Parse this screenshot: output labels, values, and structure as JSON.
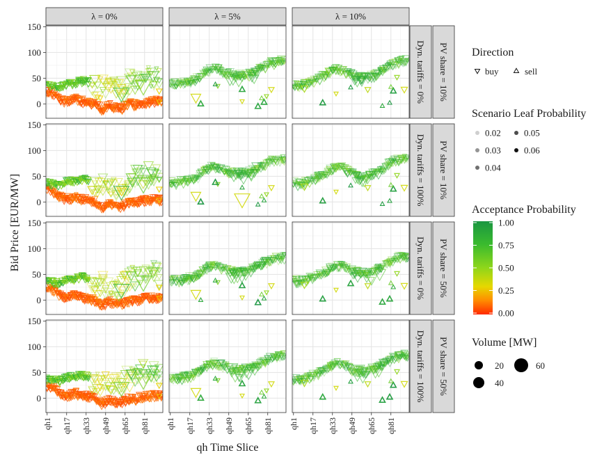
{
  "chart_data": {
    "type": "scatter",
    "xlabel": "qh Time Slice",
    "ylabel": "Bid Price [EUR/MW]",
    "x_tick_labels": [
      "qh1",
      "qh17",
      "qh33",
      "qh49",
      "qh65",
      "qh81"
    ],
    "x_tick_positions": [
      1,
      17,
      33,
      49,
      65,
      81
    ],
    "xlim": [
      0,
      96
    ],
    "ylim": [
      -28,
      152
    ],
    "y_ticks": [
      "0",
      "50",
      "100",
      "150"
    ],
    "column_strips": [
      "λ = 0%",
      "λ = 5%",
      "λ = 10%"
    ],
    "row_strips": [
      {
        "tariffs": "Dyn. tariffs = 0%",
        "pv": "PV share = 10%"
      },
      {
        "tariffs": "Dyn. tariffs = 100%",
        "pv": "PV share = 10%"
      },
      {
        "tariffs": "Dyn. tariffs = 0%",
        "pv": "PV share = 50%"
      },
      {
        "tariffs": "Dyn. tariffs = 100%",
        "pv": "PV share = 50%"
      }
    ],
    "series": [
      {
        "lambda_0": {
          "orange_band_buy": [
            [
              1,
              25
            ],
            [
              4,
              22
            ],
            [
              7,
              18
            ],
            [
              10,
              12
            ],
            [
              13,
              8
            ],
            [
              16,
              6
            ],
            [
              19,
              5
            ],
            [
              22,
              8
            ],
            [
              25,
              10
            ],
            [
              28,
              7
            ],
            [
              31,
              5
            ],
            [
              34,
              4
            ],
            [
              37,
              2
            ],
            [
              40,
              0
            ],
            [
              43,
              -5
            ],
            [
              46,
              -10
            ],
            [
              49,
              -8
            ],
            [
              52,
              -3
            ],
            [
              55,
              -5
            ],
            [
              58,
              -8
            ],
            [
              61,
              -10
            ],
            [
              64,
              -6
            ],
            [
              67,
              -2
            ],
            [
              70,
              0
            ],
            [
              73,
              -2
            ],
            [
              76,
              0
            ],
            [
              79,
              2
            ],
            [
              82,
              3
            ],
            [
              85,
              4
            ],
            [
              88,
              5
            ],
            [
              91,
              5
            ],
            [
              94,
              4
            ]
          ],
          "green_band_buy": [
            [
              1,
              38
            ],
            [
              4,
              36
            ],
            [
              7,
              34
            ],
            [
              10,
              33
            ],
            [
              13,
              35
            ],
            [
              16,
              38
            ],
            [
              19,
              42
            ],
            [
              22,
              40
            ],
            [
              25,
              42
            ],
            [
              28,
              45
            ],
            [
              31,
              44
            ],
            [
              34,
              43
            ]
          ],
          "upper_band_buy": [
            [
              40,
              32
            ],
            [
              46,
              30
            ],
            [
              52,
              28
            ],
            [
              58,
              26
            ],
            [
              64,
              30
            ],
            [
              70,
              45
            ],
            [
              76,
              50
            ],
            [
              82,
              52
            ],
            [
              88,
              55
            ],
            [
              94,
              50
            ]
          ]
        },
        "lambda_5": {
          "buy_trend": [
            [
              1,
              40
            ],
            [
              6,
              38
            ],
            [
              12,
              40
            ],
            [
              18,
              44
            ],
            [
              24,
              50
            ],
            [
              30,
              62
            ],
            [
              36,
              68
            ],
            [
              42,
              65
            ],
            [
              48,
              60
            ],
            [
              54,
              55
            ],
            [
              60,
              55
            ],
            [
              66,
              58
            ],
            [
              72,
              65
            ],
            [
              78,
              72
            ],
            [
              84,
              80
            ],
            [
              90,
              82
            ],
            [
              95,
              84
            ]
          ],
          "sell_points": [
            [
              26,
              0
            ],
            [
              38,
              38
            ],
            [
              60,
              28
            ],
            [
              73,
              -5
            ],
            [
              78,
              3
            ]
          ]
        },
        "lambda_10": {
          "buy_trend": [
            [
              1,
              38
            ],
            [
              6,
              35
            ],
            [
              12,
              40
            ],
            [
              18,
              45
            ],
            [
              24,
              52
            ],
            [
              30,
              60
            ],
            [
              36,
              68
            ],
            [
              42,
              66
            ],
            [
              48,
              58
            ],
            [
              54,
              52
            ],
            [
              60,
              50
            ],
            [
              66,
              55
            ],
            [
              72,
              62
            ],
            [
              78,
              72
            ],
            [
              84,
              80
            ],
            [
              90,
              84
            ]
          ],
          "sell_points": [
            [
              25,
              2
            ],
            [
              48,
              32
            ],
            [
              74,
              -4
            ],
            [
              80,
              2
            ],
            [
              83,
              25
            ]
          ]
        }
      }
    ],
    "legend": {
      "placement": "right",
      "direction": {
        "title": "Direction",
        "items": [
          "buy",
          "sell"
        ]
      },
      "scenario_leaf": {
        "title": "Scenario Leaf Probability",
        "items": [
          "0.02",
          "0.05",
          "0.03",
          "0.06",
          "0.04"
        ]
      },
      "acceptance": {
        "title": "Acceptance Probability",
        "ticks": [
          "1.00",
          "0.75",
          "0.50",
          "0.25",
          "0.00"
        ],
        "colors": [
          "#1a9641",
          "#66cc22",
          "#e6d800",
          "#ff8c00",
          "#ff2a00"
        ]
      },
      "volume": {
        "title": "Volume [MW]",
        "items": [
          "20",
          "60",
          "40"
        ]
      }
    },
    "grid": true
  }
}
